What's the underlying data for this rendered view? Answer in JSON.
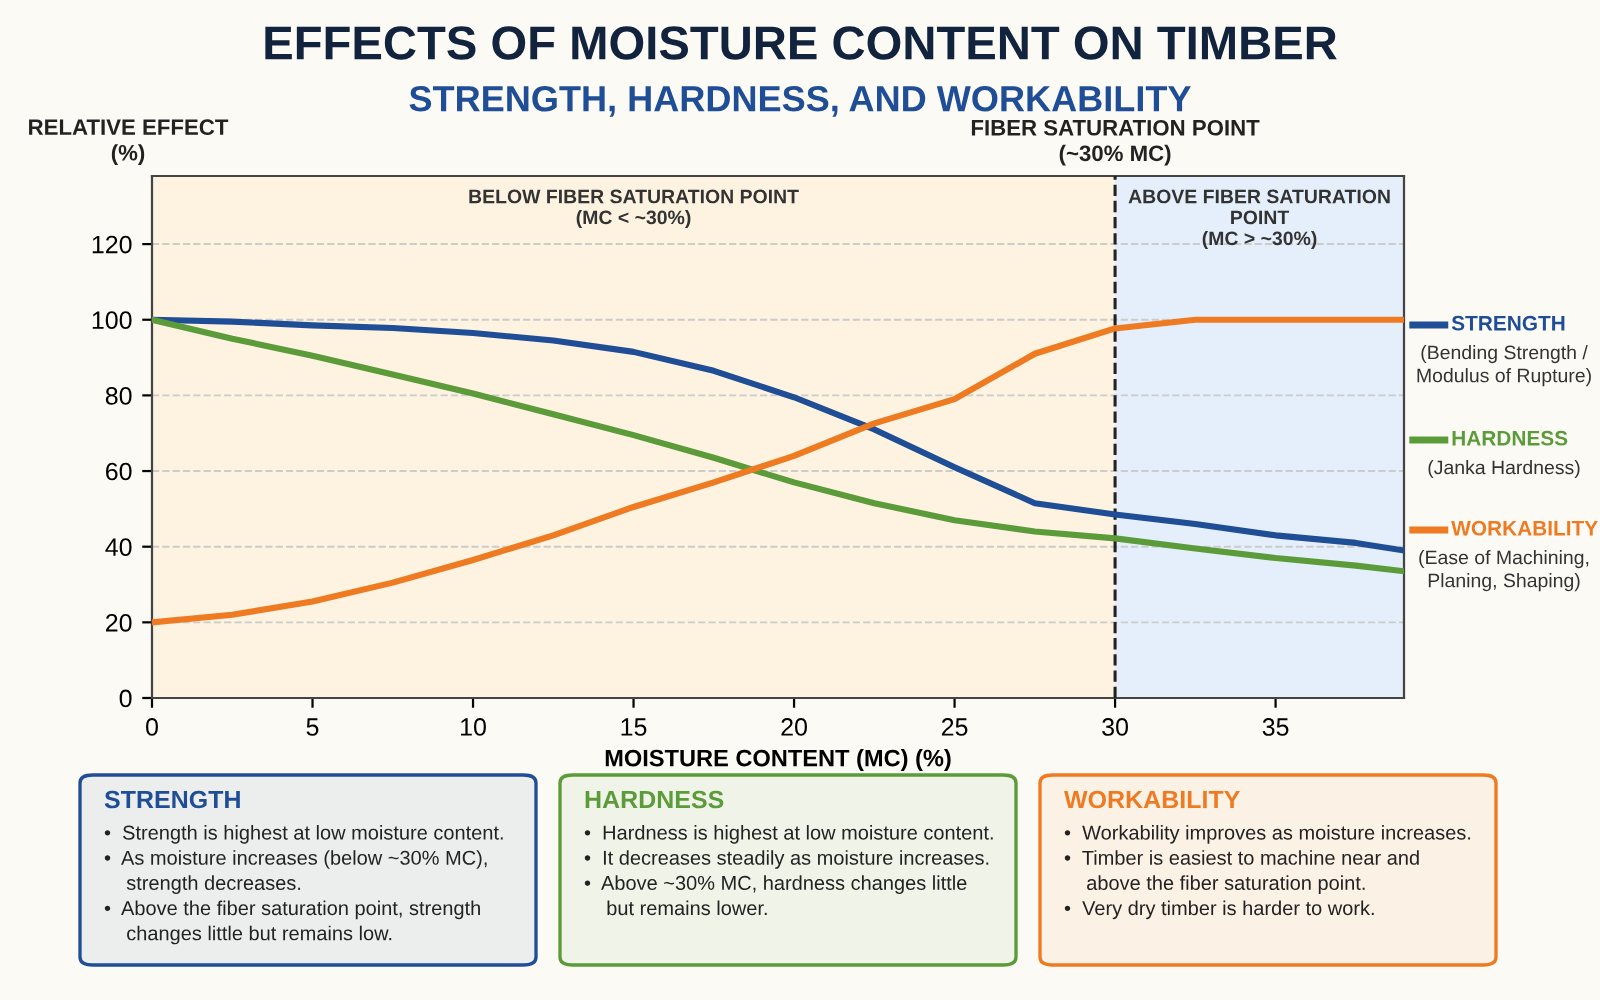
{
  "chart_data": {
    "type": "line",
    "title": "EFFECTS OF MOISTURE CONTENT ON TIMBER",
    "subtitle": "STRENGTH, HARDNESS, AND WORKABILITY",
    "xlabel": "MOISTURE CONTENT (MC) (%)",
    "ylabel": "RELATIVE EFFECT\n(%)",
    "xlim": [
      0,
      39
    ],
    "xticks": [
      0,
      5,
      10,
      15,
      20,
      25,
      30,
      35
    ],
    "ylim": [
      0,
      138
    ],
    "yticks": [
      0,
      20,
      40,
      60,
      80,
      100,
      120
    ],
    "grid": "y",
    "legend": "right",
    "marker": "none",
    "line_style": "solid",
    "x": [
      0,
      2.5,
      5,
      7.5,
      10,
      12.5,
      15,
      17.5,
      20,
      22.5,
      25,
      27.5,
      30,
      32.5,
      35,
      37.5,
      39
    ],
    "series": [
      {
        "name": "STRENGTH",
        "color": "#1f4e96",
        "values": [
          100,
          99.5,
          98.5,
          97.8,
          96.5,
          94.5,
          91.5,
          86.5,
          79.5,
          71,
          61,
          51.5,
          48.5,
          46,
          43,
          41,
          39
        ]
      },
      {
        "name": "HARDNESS",
        "color": "#5b9b3a",
        "values": [
          100,
          95,
          90.5,
          85.5,
          80.5,
          75,
          69.5,
          63.5,
          57,
          51.5,
          47,
          44,
          42.2,
          39.5,
          37,
          35,
          33.5
        ]
      },
      {
        "name": "WORKABILITY",
        "color": "#ee7a22",
        "values": [
          20,
          22,
          25.5,
          30.5,
          36.5,
          43,
          50.5,
          57,
          64,
          72.6,
          79,
          91,
          97.7,
          100,
          100,
          100,
          100
        ]
      }
    ],
    "ref_lines": [
      {
        "axis": "x",
        "value": 30,
        "label": "FIBER SATURATION POINT\n(~30% MC)",
        "color": "#222222",
        "line_style": "dashed"
      }
    ],
    "bands": [
      {
        "axis": "x",
        "from": 0,
        "to": 30,
        "label": "BELOW FIBER SATURATION POINT\n(MC < ~30%)",
        "color": "#fdf3e0"
      },
      {
        "axis": "x",
        "from": 30,
        "to": 39,
        "label": "ABOVE FIBER SATURATION\nPOINT\n(MC > ~30%)",
        "color": "#e5effb"
      }
    ],
    "annotations": [
      "(Bending Strength /\nModulus of Rupture)",
      "(Janka Hardness)",
      "(Ease of Machining,\nPlaning, Shaping)",
      "STRENGTH\n•  Strength is highest at low moisture content.\n•  As moisture increases (below ~30% MC),\n    strength decreases.\n•  Above the fiber saturation point, strength\n    changes little but remains low.",
      "HARDNESS\n•  Hardness is highest at low moisture content.\n•  It decreases steadily as moisture increases.\n•  Above ~30% MC, hardness changes little\n    but remains lower.",
      "WORKABILITY\n•  Workability improves as moisture increases.\n•  Timber is easiest to machine near and\n    above the fiber saturation point.\n•  Very dry timber is harder to work."
    ]
  }
}
